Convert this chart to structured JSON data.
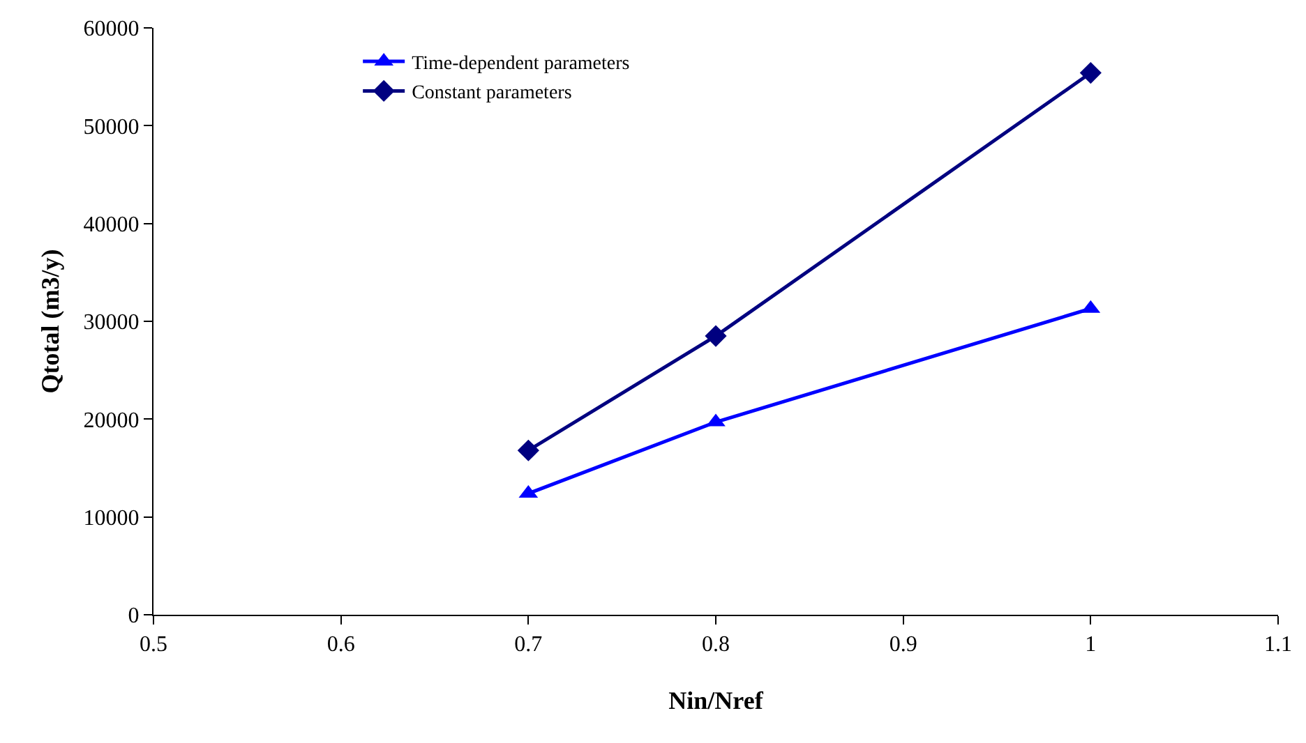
{
  "chart_data": {
    "type": "line",
    "xlabel": "Nin/Nref",
    "ylabel": "Qtotal (m3/y)",
    "x": [
      0.7,
      0.8,
      1.0
    ],
    "series": [
      {
        "name": "Time-dependent parameters",
        "color": "#0000ff",
        "marker": "triangle",
        "values": [
          12400,
          19700,
          31300
        ]
      },
      {
        "name": "Constant parameters",
        "color": "#000080",
        "marker": "diamond",
        "values": [
          16800,
          28500,
          55400
        ]
      }
    ],
    "xlim": [
      0.5,
      1.1
    ],
    "xticks": [
      0.5,
      0.6,
      0.7,
      0.8,
      0.9,
      1,
      1.1
    ],
    "ylim": [
      0,
      60000
    ],
    "yticks": [
      0,
      10000,
      20000,
      30000,
      40000,
      50000,
      60000
    ],
    "grid": false,
    "legend": "top left",
    "line_style": "solid"
  }
}
